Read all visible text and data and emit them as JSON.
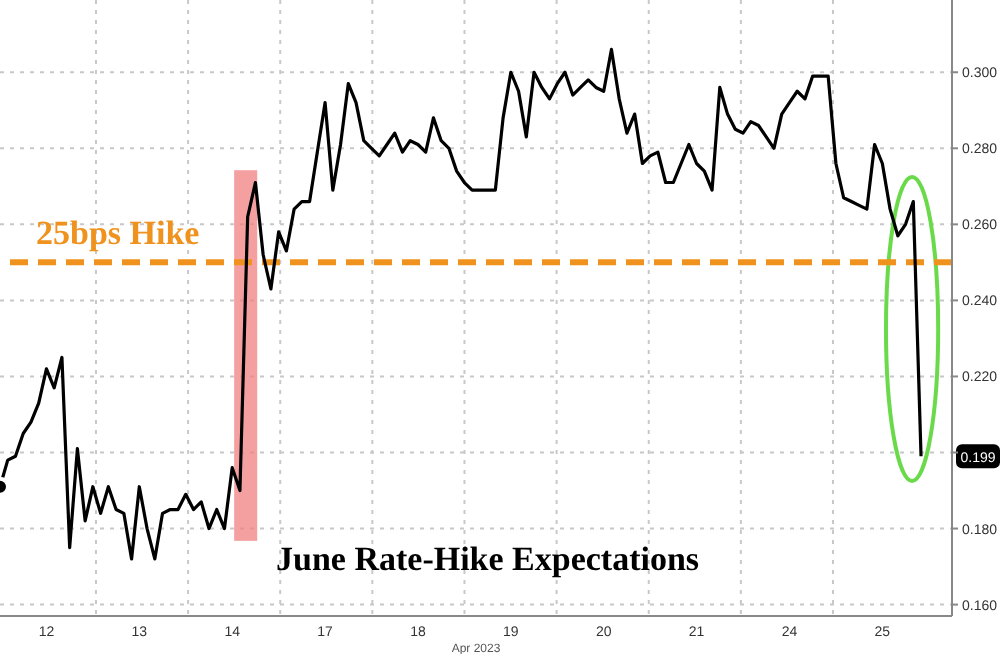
{
  "chart_data": {
    "type": "line",
    "title": "June Rate-Hike Expectations",
    "xlabel": "Apr 2023",
    "categories": [
      null,
      null,
      null,
      null,
      null,
      null,
      "12",
      null,
      null,
      null,
      null,
      null,
      null,
      null,
      null,
      null,
      null,
      null,
      "13",
      null,
      null,
      null,
      null,
      null,
      null,
      null,
      null,
      null,
      null,
      null,
      "14",
      null,
      null,
      null,
      null,
      null,
      null,
      null,
      null,
      null,
      null,
      null,
      "17",
      null,
      null,
      null,
      null,
      null,
      null,
      null,
      null,
      null,
      null,
      null,
      "18",
      null,
      null,
      null,
      null,
      null,
      null,
      null,
      null,
      null,
      null,
      null,
      "19",
      null,
      null,
      null,
      null,
      null,
      null,
      null,
      null,
      null,
      null,
      null,
      "20",
      null,
      null,
      null,
      null,
      null,
      null,
      null,
      null,
      null,
      null,
      null,
      "21",
      null,
      null,
      null,
      null,
      null,
      null,
      null,
      null,
      null,
      null,
      null,
      "24",
      null,
      null,
      null,
      null,
      null,
      null,
      null,
      null,
      null,
      null,
      null,
      "25",
      null,
      null,
      null,
      null,
      null,
      null,
      null,
      null,
      null
    ],
    "series": [
      {
        "color": "#000000",
        "values": [
          0.191,
          0.198,
          0.199,
          0.205,
          0.208,
          0.213,
          0.222,
          0.217,
          0.225,
          0.175,
          0.201,
          0.182,
          0.191,
          0.184,
          0.191,
          0.185,
          0.184,
          0.172,
          0.191,
          0.18,
          0.172,
          0.184,
          0.185,
          0.185,
          0.189,
          0.185,
          0.187,
          0.18,
          0.185,
          0.18,
          0.196,
          0.19,
          0.262,
          0.271,
          0.252,
          0.243,
          0.258,
          0.253,
          0.264,
          0.266,
          0.266,
          0.279,
          0.292,
          0.269,
          0.281,
          0.297,
          0.292,
          0.282,
          0.28,
          0.278,
          0.281,
          0.284,
          0.279,
          0.282,
          0.281,
          0.279,
          0.288,
          0.282,
          0.28,
          0.274,
          0.271,
          0.269,
          0.269,
          0.269,
          0.269,
          0.288,
          0.3,
          0.295,
          0.283,
          0.3,
          0.296,
          0.293,
          0.297,
          0.3,
          0.294,
          0.296,
          0.298,
          0.296,
          0.295,
          0.306,
          0.293,
          0.284,
          0.289,
          0.276,
          0.278,
          0.279,
          0.271,
          0.271,
          0.276,
          0.281,
          0.276,
          0.274,
          0.269,
          0.296,
          0.289,
          0.285,
          0.284,
          0.287,
          0.286,
          0.283,
          0.28,
          0.289,
          0.292,
          0.295,
          0.293,
          0.299,
          0.299,
          0.299,
          0.276,
          0.267,
          0.266,
          0.265,
          0.264,
          0.281,
          0.276,
          0.264,
          0.257,
          0.26,
          0.266,
          0.199,
          null,
          null,
          null,
          null
        ]
      }
    ],
    "ylim": [
      0.157,
      0.319
    ],
    "yticks": [
      {
        "value": 0.16,
        "label": "0.160"
      },
      {
        "value": 0.18,
        "label": "0.180"
      },
      {
        "value": 0.2,
        "label": null
      },
      {
        "value": 0.22,
        "label": "0.220"
      },
      {
        "value": 0.24,
        "label": "0.240"
      },
      {
        "value": 0.26,
        "label": "0.260"
      },
      {
        "value": 0.28,
        "label": "0.280"
      },
      {
        "value": 0.3,
        "label": "0.300"
      }
    ],
    "grid": true,
    "marker": "none",
    "line_style": "solid",
    "ref_lines": [
      {
        "axis": "y",
        "value": 0.25,
        "label": "25bps Hike",
        "color": "#f0921e",
        "line_style": "dashed"
      }
    ],
    "annotations": [
      "0.199"
    ]
  }
}
